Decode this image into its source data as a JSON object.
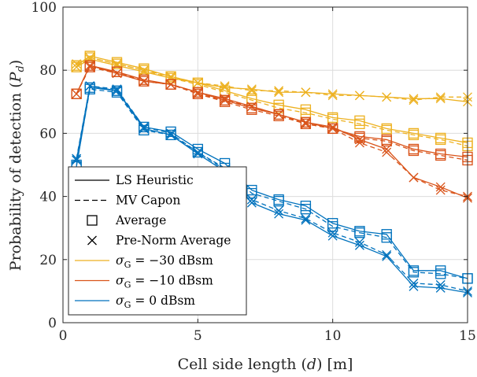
{
  "chart_data": {
    "type": "line",
    "xlabel_main": "Cell side length (",
    "xlabel_var": "d",
    "xlabel_tail": ") [m]",
    "ylabel_main": "Probability of detection (",
    "ylabel_var": "P",
    "ylabel_sub": "d",
    "ylabel_tail": ")",
    "xlim": [
      0,
      15
    ],
    "ylim": [
      0,
      100
    ],
    "xticks": [
      "0",
      "5",
      "10",
      "15"
    ],
    "yticks": [
      "0",
      "20",
      "40",
      "60",
      "80",
      "100"
    ],
    "grid": true,
    "legend_position": "bottom-left",
    "legend": [
      {
        "label": "LS Heuristic",
        "style": "solid"
      },
      {
        "label": "MV Capon",
        "style": "dashed"
      },
      {
        "label": "Average",
        "marker": "square"
      },
      {
        "label": "Pre-Norm Average",
        "marker": "x"
      },
      {
        "label": "σG = −30 dBsm",
        "sym": "σ",
        "sub": "G",
        "rest": " = −30 dBsm",
        "color": "#EDB120"
      },
      {
        "label": "σG = −10 dBsm",
        "sym": "σ",
        "sub": "G",
        "rest": " = −10 dBsm",
        "color": "#D95319"
      },
      {
        "label": "σG = 0 dBsm",
        "sym": "σ",
        "sub": "G",
        "rest": " = 0 dBsm",
        "color": "#0072BD"
      }
    ],
    "x": [
      0.5,
      1,
      2,
      3,
      4,
      5,
      6,
      7,
      8,
      9,
      10,
      11,
      12,
      13,
      14,
      15
    ],
    "series": [
      {
        "name": "σG = −30 dBsm, LS Heuristic, Average",
        "color": "#EDB120",
        "dash": false,
        "marker": "square",
        "values": [
          81.5,
          84.5,
          82.5,
          80.5,
          78,
          76,
          73.5,
          71,
          69,
          67.5,
          65,
          64,
          61.5,
          60,
          58.5,
          57
        ]
      },
      {
        "name": "σG = −30 dBsm, MV Capon, Average",
        "color": "#EDB120",
        "dash": true,
        "marker": "square",
        "values": [
          81,
          84,
          82,
          80,
          77.5,
          75.5,
          73,
          70.5,
          68,
          66.5,
          64.5,
          63,
          61,
          59.5,
          58,
          56
        ]
      },
      {
        "name": "σG = −30 dBsm, LS Heuristic, Pre-Norm Average",
        "color": "#EDB120",
        "dash": false,
        "marker": "x",
        "values": [
          81,
          83.5,
          81.5,
          79.5,
          77.5,
          76,
          74.5,
          74,
          73,
          73,
          72.5,
          72,
          71.5,
          71,
          71,
          70
        ]
      },
      {
        "name": "σG = −30 dBsm, MV Capon, Pre-Norm Average",
        "color": "#EDB120",
        "dash": true,
        "marker": "x",
        "values": [
          82,
          84,
          82,
          80,
          78,
          76,
          75,
          73.5,
          73.5,
          73,
          72,
          72,
          71.5,
          70.5,
          71.5,
          71.5
        ]
      },
      {
        "name": "σG = −10 dBsm, LS Heuristic, Average",
        "color": "#D95319",
        "dash": false,
        "marker": "square",
        "values": [
          72.5,
          81.5,
          79.5,
          77,
          75.5,
          73,
          70.5,
          68,
          66,
          63.5,
          61.5,
          59,
          58,
          55,
          53.5,
          52.5
        ]
      },
      {
        "name": "σG = −10 dBsm, MV Capon, Average",
        "color": "#D95319",
        "dash": true,
        "marker": "square",
        "values": [
          72.5,
          81,
          79.5,
          76.5,
          75.5,
          72.5,
          70,
          67.5,
          65.5,
          63,
          61.5,
          58.5,
          57.5,
          54.5,
          53,
          51.5
        ]
      },
      {
        "name": "σG = −10 dBsm, LS Heuristic, Pre-Norm Average",
        "color": "#D95319",
        "dash": false,
        "marker": "x",
        "values": [
          72.5,
          81.5,
          79,
          76.5,
          75.5,
          73,
          71,
          68.5,
          66,
          63.5,
          62,
          58,
          55,
          46,
          43,
          39.5
        ]
      },
      {
        "name": "σG = −10 dBsm, MV Capon, Pre-Norm Average",
        "color": "#D95319",
        "dash": true,
        "marker": "x",
        "values": [
          72.5,
          81,
          79,
          76.5,
          75.5,
          72.5,
          70.5,
          68.5,
          66,
          63,
          61.5,
          57,
          54,
          46,
          42,
          40
        ]
      },
      {
        "name": "σG = 0 dBsm, LS Heuristic, Average",
        "color": "#0072BD",
        "dash": false,
        "marker": "square",
        "values": [
          49.5,
          74.5,
          73.5,
          62,
          60.5,
          55,
          50.5,
          42,
          39,
          37,
          31.5,
          29,
          28,
          16.5,
          16.5,
          14
        ]
      },
      {
        "name": "σG = 0 dBsm, MV Capon, Average",
        "color": "#0072BD",
        "dash": true,
        "marker": "square",
        "values": [
          50,
          74,
          73,
          61,
          59.5,
          54,
          49,
          41,
          38.5,
          36,
          30.5,
          28.5,
          27,
          16,
          15.5,
          14
        ]
      },
      {
        "name": "σG = 0 dBsm, LS Heuristic, Pre-Norm Average",
        "color": "#0072BD",
        "dash": false,
        "marker": "x",
        "values": [
          51.5,
          75,
          73.5,
          61.5,
          59.5,
          53.5,
          48,
          38,
          34.5,
          32.5,
          27.5,
          24.5,
          21,
          11.5,
          11,
          9.5
        ]
      },
      {
        "name": "σG = 0 dBsm, MV Capon, Pre-Norm Average",
        "color": "#0072BD",
        "dash": true,
        "marker": "x",
        "values": [
          52,
          75,
          74,
          62,
          60,
          54,
          48.5,
          39,
          35.5,
          33,
          28.5,
          25.5,
          21.5,
          12.5,
          12,
          10
        ]
      }
    ]
  }
}
